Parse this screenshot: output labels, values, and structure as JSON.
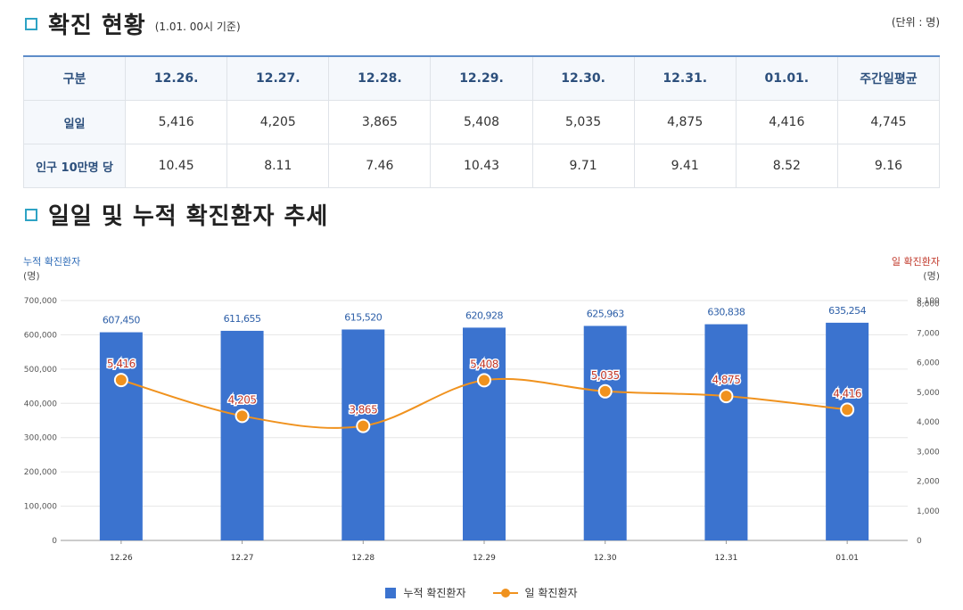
{
  "header": {
    "title": "확진 현황",
    "subtitle": "(1.01. 00시 기준)",
    "unit": "(단위 : 명)"
  },
  "table": {
    "headers": [
      "구분",
      "12.26.",
      "12.27.",
      "12.28.",
      "12.29.",
      "12.30.",
      "12.31.",
      "01.01.",
      "주간일평균"
    ],
    "rows": [
      {
        "label": "일일",
        "values": [
          "5,416",
          "4,205",
          "3,865",
          "5,408",
          "5,035",
          "4,875",
          "4,416",
          "4,745"
        ]
      },
      {
        "label": "인구 10만명 당",
        "values": [
          "10.45",
          "8.11",
          "7.46",
          "10.43",
          "9.71",
          "9.41",
          "8.52",
          "9.16"
        ]
      }
    ]
  },
  "section2": {
    "title": "일일 및 누적 확진환자 추세"
  },
  "chart_data": {
    "type": "bar",
    "categories": [
      "12.26",
      "12.27",
      "12.28",
      "12.29",
      "12.30",
      "12.31",
      "01.01"
    ],
    "series": [
      {
        "name": "누적 확진환자",
        "type": "bar",
        "axis": "left",
        "values": [
          607450,
          611655,
          615520,
          620928,
          625963,
          630838,
          635254
        ],
        "labels": [
          "607,450",
          "611,655",
          "615,520",
          "620,928",
          "625,963",
          "630,838",
          "635,254"
        ]
      },
      {
        "name": "일 확진환자",
        "type": "line",
        "axis": "right",
        "values": [
          5416,
          4205,
          3865,
          5408,
          5035,
          4875,
          4416
        ],
        "labels": [
          "5,416",
          "4,205",
          "3,865",
          "5,408",
          "5,035",
          "4,875",
          "4,416"
        ]
      }
    ],
    "y_left": {
      "title": "누적 확진환자",
      "unit": "(명)",
      "min": 0,
      "max": 700000,
      "ticks": [
        "0",
        "100,000",
        "200,000",
        "300,000",
        "400,000",
        "500,000",
        "600,000",
        "700,000"
      ]
    },
    "y_right": {
      "title": "일 확진환자",
      "unit": "(명)",
      "min": 0,
      "max": 8100,
      "ticks": [
        "0",
        "1,000",
        "2,000",
        "3,000",
        "4,000",
        "5,000",
        "6,000",
        "7,000",
        "8,000",
        "8,100"
      ]
    },
    "colors": {
      "bar": "#3b73cf",
      "line": "#f0921e",
      "line_label": "#c0392b",
      "bar_label": "#2d5fa8"
    }
  }
}
